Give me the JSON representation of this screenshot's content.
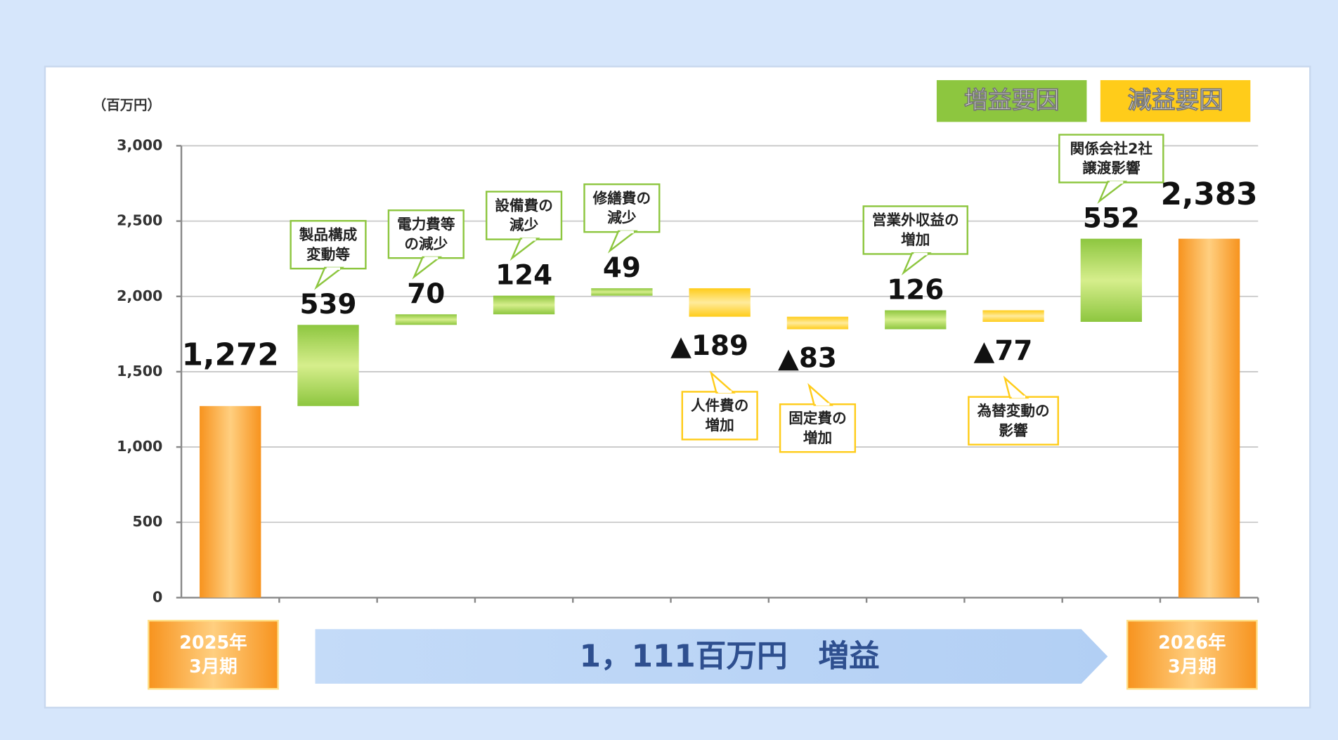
{
  "chart_data": {
    "type": "waterfall",
    "unit_label": "（百万円）",
    "categories": [
      [
        "2025年",
        "3月期"
      ],
      [
        "製品構成",
        "変動等"
      ],
      [
        "電力費等",
        "の減少"
      ],
      [
        "設備費の",
        "減少"
      ],
      [
        "修繕費の",
        "減少"
      ],
      [
        "人件費の",
        "増加"
      ],
      [
        "固定費の",
        "増加"
      ],
      [
        "営業外収益の",
        "増加"
      ],
      [
        "為替変動の",
        "影響"
      ],
      [
        "関係会社2社",
        "譲渡影響"
      ],
      [
        "2026年",
        "3月期"
      ]
    ],
    "measure": [
      "total",
      "relative",
      "relative",
      "relative",
      "relative",
      "relative",
      "relative",
      "relative",
      "relative",
      "relative",
      "total"
    ],
    "values": [
      1272,
      539,
      70,
      124,
      49,
      -189,
      -83,
      126,
      -77,
      552,
      2383
    ],
    "value_labels": [
      "1,272",
      "539",
      "70",
      "124",
      "49",
      "▲189",
      "▲83",
      "126",
      "▲77",
      "552",
      "2,383"
    ],
    "colors": {
      "total": "#f7931e",
      "increase": "#8dc63f",
      "decrease": "#ffcc1a"
    },
    "legend": [
      {
        "name": "増益要因",
        "color": "#8dc63f"
      },
      {
        "name": "減益要因",
        "color": "#ffcc1a"
      }
    ],
    "legend_position": "upper right",
    "banner": "1，111百万円　増益",
    "ylim": [
      0,
      3000
    ],
    "yticks": [
      0,
      500,
      {
        "value": 1000,
        "label": "1,000"
      },
      {
        "value": 1500,
        "label": "1,500"
      },
      {
        "value": 2000,
        "label": "2,000"
      },
      {
        "value": 2500,
        "label": "2,500"
      },
      {
        "value": 3000,
        "label": "3,000"
      }
    ],
    "grid": true
  }
}
